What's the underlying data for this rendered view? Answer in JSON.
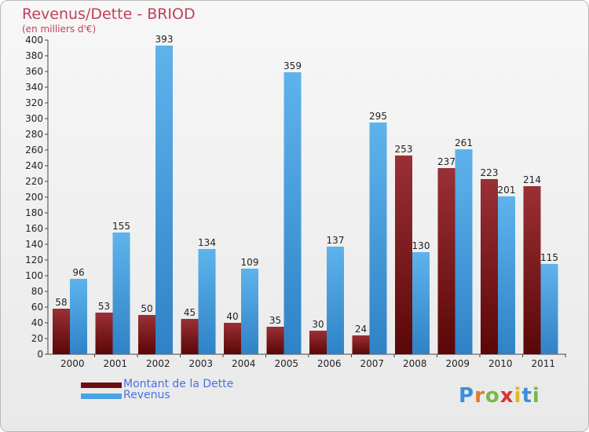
{
  "header": {
    "title": "Revenus/Dette - BRIOD",
    "subtitle": "(en milliers d'€)"
  },
  "chart_data": {
    "type": "bar",
    "title": "Revenus/Dette - BRIOD",
    "ylabel": "(en milliers d'€)",
    "xlabel": "",
    "categories": [
      "2000",
      "2001",
      "2002",
      "2003",
      "2004",
      "2005",
      "2006",
      "2007",
      "2008",
      "2009",
      "2010",
      "2011"
    ],
    "series": [
      {
        "name": "Montant de la Dette",
        "color": "#7a1518",
        "values": [
          58,
          53,
          50,
          45,
          40,
          35,
          30,
          24,
          253,
          237,
          223,
          214
        ]
      },
      {
        "name": "Revenus",
        "color": "#3f9be0",
        "values": [
          96,
          155,
          393,
          134,
          109,
          359,
          137,
          295,
          130,
          261,
          201,
          115
        ]
      }
    ],
    "ylim": [
      0,
      400
    ],
    "ytick_step": 20,
    "grid": false,
    "legend_position": "bottom-left"
  },
  "legend": {
    "items": [
      {
        "label": "Montant de la Dette",
        "color": "#6b0f12"
      },
      {
        "label": "Revenus",
        "color": "#4aa3e3"
      }
    ]
  },
  "logo": {
    "letters": [
      "P",
      "r",
      "o",
      "x",
      "i",
      "t",
      "i"
    ],
    "colors": [
      "#3c8fd8",
      "#e07a2a",
      "#7ab648",
      "#d9342b",
      "#e0b81f",
      "#3c8fd8",
      "#7ab648"
    ]
  }
}
